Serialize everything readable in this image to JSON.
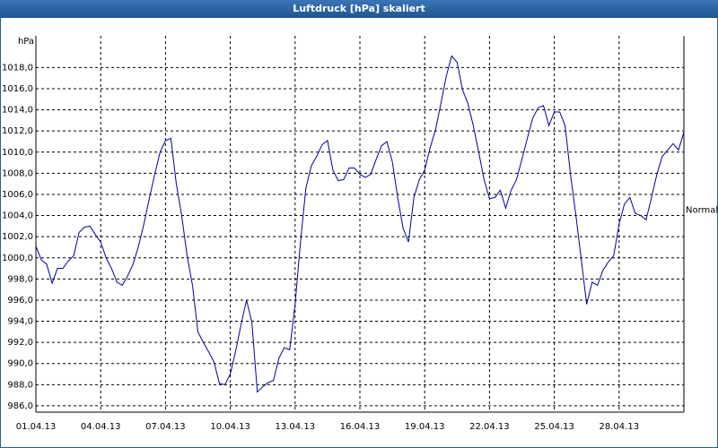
{
  "chart_data": {
    "type": "line",
    "title": "Luftdruck [hPa] skaliert",
    "y_label": "hPa",
    "color": "#0000a0",
    "x": [
      1,
      1.25,
      1.5,
      1.75,
      2,
      2.25,
      2.5,
      2.75,
      3,
      3.25,
      3.5,
      3.75,
      4,
      4.25,
      4.5,
      4.75,
      5,
      5.25,
      5.5,
      5.75,
      6,
      6.25,
      6.5,
      6.75,
      7,
      7.25,
      7.5,
      7.75,
      8,
      8.25,
      8.5,
      8.75,
      9,
      9.25,
      9.5,
      9.75,
      10,
      10.25,
      10.5,
      10.75,
      11,
      11.25,
      11.5,
      11.75,
      12,
      12.25,
      12.5,
      12.75,
      13,
      13.25,
      13.5,
      13.75,
      14,
      14.25,
      14.5,
      14.75,
      15,
      15.25,
      15.5,
      15.75,
      16,
      16.25,
      16.5,
      16.75,
      17,
      17.25,
      17.5,
      17.75,
      18,
      18.25,
      18.5,
      18.75,
      19,
      19.25,
      19.5,
      19.75,
      20,
      20.25,
      20.5,
      20.75,
      21,
      21.25,
      21.5,
      21.75,
      22,
      22.25,
      22.5,
      22.75,
      23,
      23.25,
      23.5,
      23.75,
      24,
      24.25,
      24.5,
      24.75,
      25,
      25.25,
      25.5,
      25.75,
      26,
      26.25,
      26.5,
      26.75,
      27,
      27.25,
      27.5,
      27.75,
      28,
      28.25,
      28.5,
      28.75,
      29,
      29.25,
      29.5,
      29.75,
      30,
      30.25,
      30.5,
      30.75,
      31
    ],
    "values": [
      1001.1,
      999.8,
      999.4,
      997.6,
      999.0,
      999.0,
      999.7,
      1000.2,
      1002.4,
      1002.9,
      1003.0,
      1002.2,
      1001.5,
      1000.0,
      999.0,
      997.7,
      997.4,
      998.3,
      999.4,
      1001.1,
      1003.2,
      1005.6,
      1007.9,
      1010.0,
      1011.1,
      1011.3,
      1007.0,
      1004.0,
      1000.2,
      997.4,
      993.0,
      992.0,
      991.1,
      990.1,
      988.1,
      988.0,
      989.0,
      991.2,
      993.7,
      996.0,
      993.9,
      987.3,
      987.8,
      988.2,
      988.4,
      990.5,
      991.5,
      991.3,
      995.6,
      1001.5,
      1006.6,
      1008.7,
      1009.6,
      1010.7,
      1011.1,
      1008.3,
      1007.3,
      1007.4,
      1008.5,
      1008.5,
      1007.9,
      1007.6,
      1007.9,
      1009.3,
      1010.6,
      1011.0,
      1009.1,
      1005.7,
      1002.8,
      1001.5,
      1005.7,
      1007.4,
      1008.3,
      1010.4,
      1012.1,
      1014.6,
      1017.2,
      1019.1,
      1018.5,
      1015.9,
      1014.6,
      1012.5,
      1010.0,
      1007.4,
      1005.6,
      1005.7,
      1006.4,
      1004.7,
      1006.4,
      1007.4,
      1009.3,
      1011.3,
      1013.2,
      1014.2,
      1014.4,
      1012.5,
      1013.8,
      1013.8,
      1012.5,
      1007.9,
      1004.0,
      999.8,
      995.6,
      997.7,
      997.4,
      998.8,
      999.6,
      1000.2,
      1003.2,
      1005.1,
      1005.7,
      1004.2,
      1004.0,
      1003.6,
      1005.7,
      1007.9,
      1009.6,
      1010.2,
      1010.8,
      1010.2,
      1011.9
    ],
    "xlim": [
      1,
      31
    ],
    "xticks": [
      {
        "value": 1,
        "label": "01.04.13"
      },
      {
        "value": 4,
        "label": "04.04.13"
      },
      {
        "value": 7,
        "label": "07.04.13"
      },
      {
        "value": 10,
        "label": "10.04.13"
      },
      {
        "value": 13,
        "label": "13.04.13"
      },
      {
        "value": 16,
        "label": "16.04.13"
      },
      {
        "value": 19,
        "label": "19.04.13"
      },
      {
        "value": 22,
        "label": "22.04.13"
      },
      {
        "value": 25,
        "label": "25.04.13"
      },
      {
        "value": 28,
        "label": "28.04.13"
      }
    ],
    "ylim": [
      985.4,
      1021
    ],
    "yticks": [
      {
        "value": 986,
        "label": "986,0"
      },
      {
        "value": 988,
        "label": "988,0"
      },
      {
        "value": 990,
        "label": "990,0"
      },
      {
        "value": 992,
        "label": "992,0"
      },
      {
        "value": 994,
        "label": "994,0"
      },
      {
        "value": 996,
        "label": "996,0"
      },
      {
        "value": 998,
        "label": "998,0"
      },
      {
        "value": 1000,
        "label": "1000,0"
      },
      {
        "value": 1002,
        "label": "1002,0"
      },
      {
        "value": 1004,
        "label": "1004,0"
      },
      {
        "value": 1006,
        "label": "1006,0"
      },
      {
        "value": 1008,
        "label": "1008,0"
      },
      {
        "value": 1010,
        "label": "1010,0"
      },
      {
        "value": 1012,
        "label": "1012,0"
      },
      {
        "value": 1014,
        "label": "1014,0"
      },
      {
        "value": 1016,
        "label": "1016,0"
      },
      {
        "value": 1018,
        "label": "1018,0"
      }
    ],
    "grid": true,
    "normal": {
      "label": "Normal",
      "value": 1004.5
    }
  }
}
